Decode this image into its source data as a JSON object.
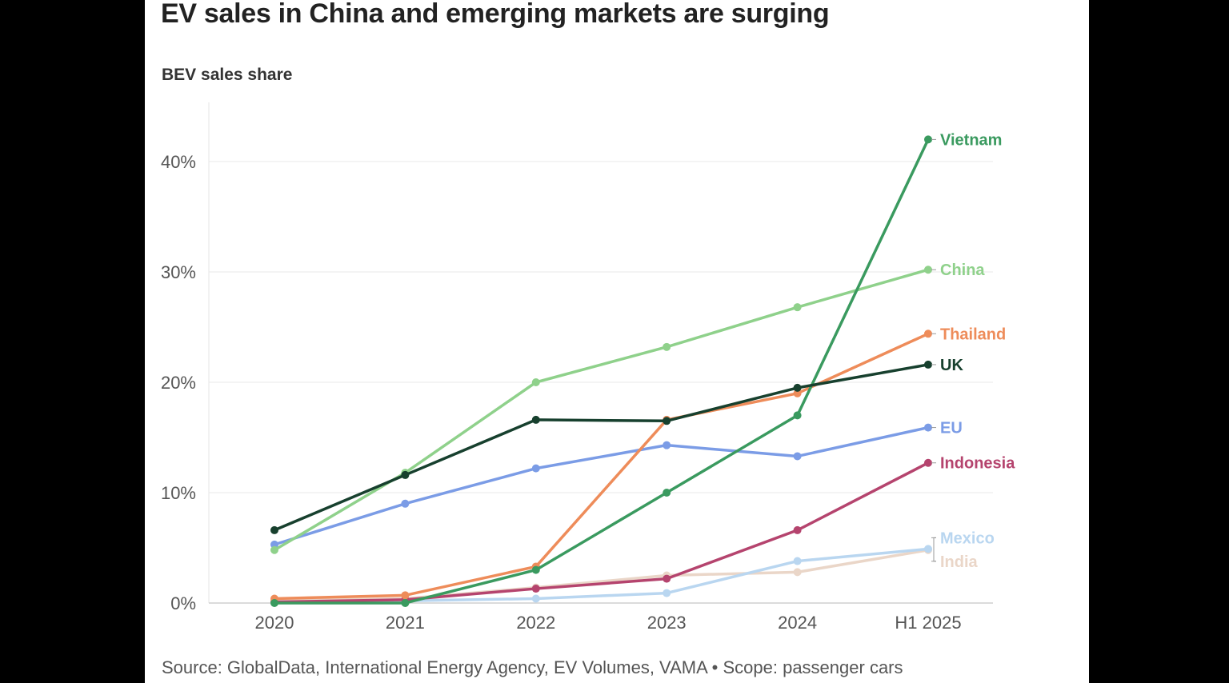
{
  "title": "EV sales in China and emerging markets are surging",
  "subtitle": "BEV sales share",
  "source": "Source: GlobalData, International Energy Agency, EV Volumes, VAMA • Scope: passenger cars",
  "chart_data": {
    "type": "line",
    "title": "EV sales in China and emerging markets are surging",
    "subtitle": "BEV sales share",
    "x": [
      "2020",
      "2021",
      "2022",
      "2023",
      "2024",
      "H1 2025"
    ],
    "ylim": [
      0,
      45
    ],
    "yticks": [
      0,
      10,
      20,
      30,
      40
    ],
    "ytick_labels": [
      "0%",
      "10%",
      "20%",
      "30%",
      "40%"
    ],
    "grid": "horizontal",
    "legend": "direct labels at line ends",
    "series": [
      {
        "name": "India",
        "color": "#ead6c8",
        "values": [
          0.2,
          0.4,
          1.4,
          2.5,
          2.8,
          4.8
        ]
      },
      {
        "name": "Mexico",
        "color": "#b9d6f0",
        "values": [
          0.1,
          0.2,
          0.4,
          0.9,
          3.8,
          4.9
        ]
      },
      {
        "name": "Indonesia",
        "color": "#b5446e",
        "values": [
          0.1,
          0.3,
          1.3,
          2.2,
          6.6,
          12.7
        ]
      },
      {
        "name": "EU",
        "color": "#7b9ce6",
        "values": [
          5.3,
          9.0,
          12.2,
          14.3,
          13.3,
          15.9
        ]
      },
      {
        "name": "Thailand",
        "color": "#ee8c5a",
        "values": [
          0.4,
          0.7,
          3.3,
          16.6,
          19.0,
          24.4
        ]
      },
      {
        "name": "China",
        "color": "#8fd18b",
        "values": [
          4.8,
          11.8,
          20.0,
          23.2,
          26.8,
          30.2
        ]
      },
      {
        "name": "Vietnam",
        "color": "#3a9a5f",
        "values": [
          0.0,
          0.0,
          3.0,
          10.0,
          17.0,
          42.0
        ]
      },
      {
        "name": "UK",
        "color": "#17402e",
        "values": [
          6.6,
          11.6,
          16.6,
          16.5,
          19.5,
          21.6
        ]
      }
    ]
  }
}
